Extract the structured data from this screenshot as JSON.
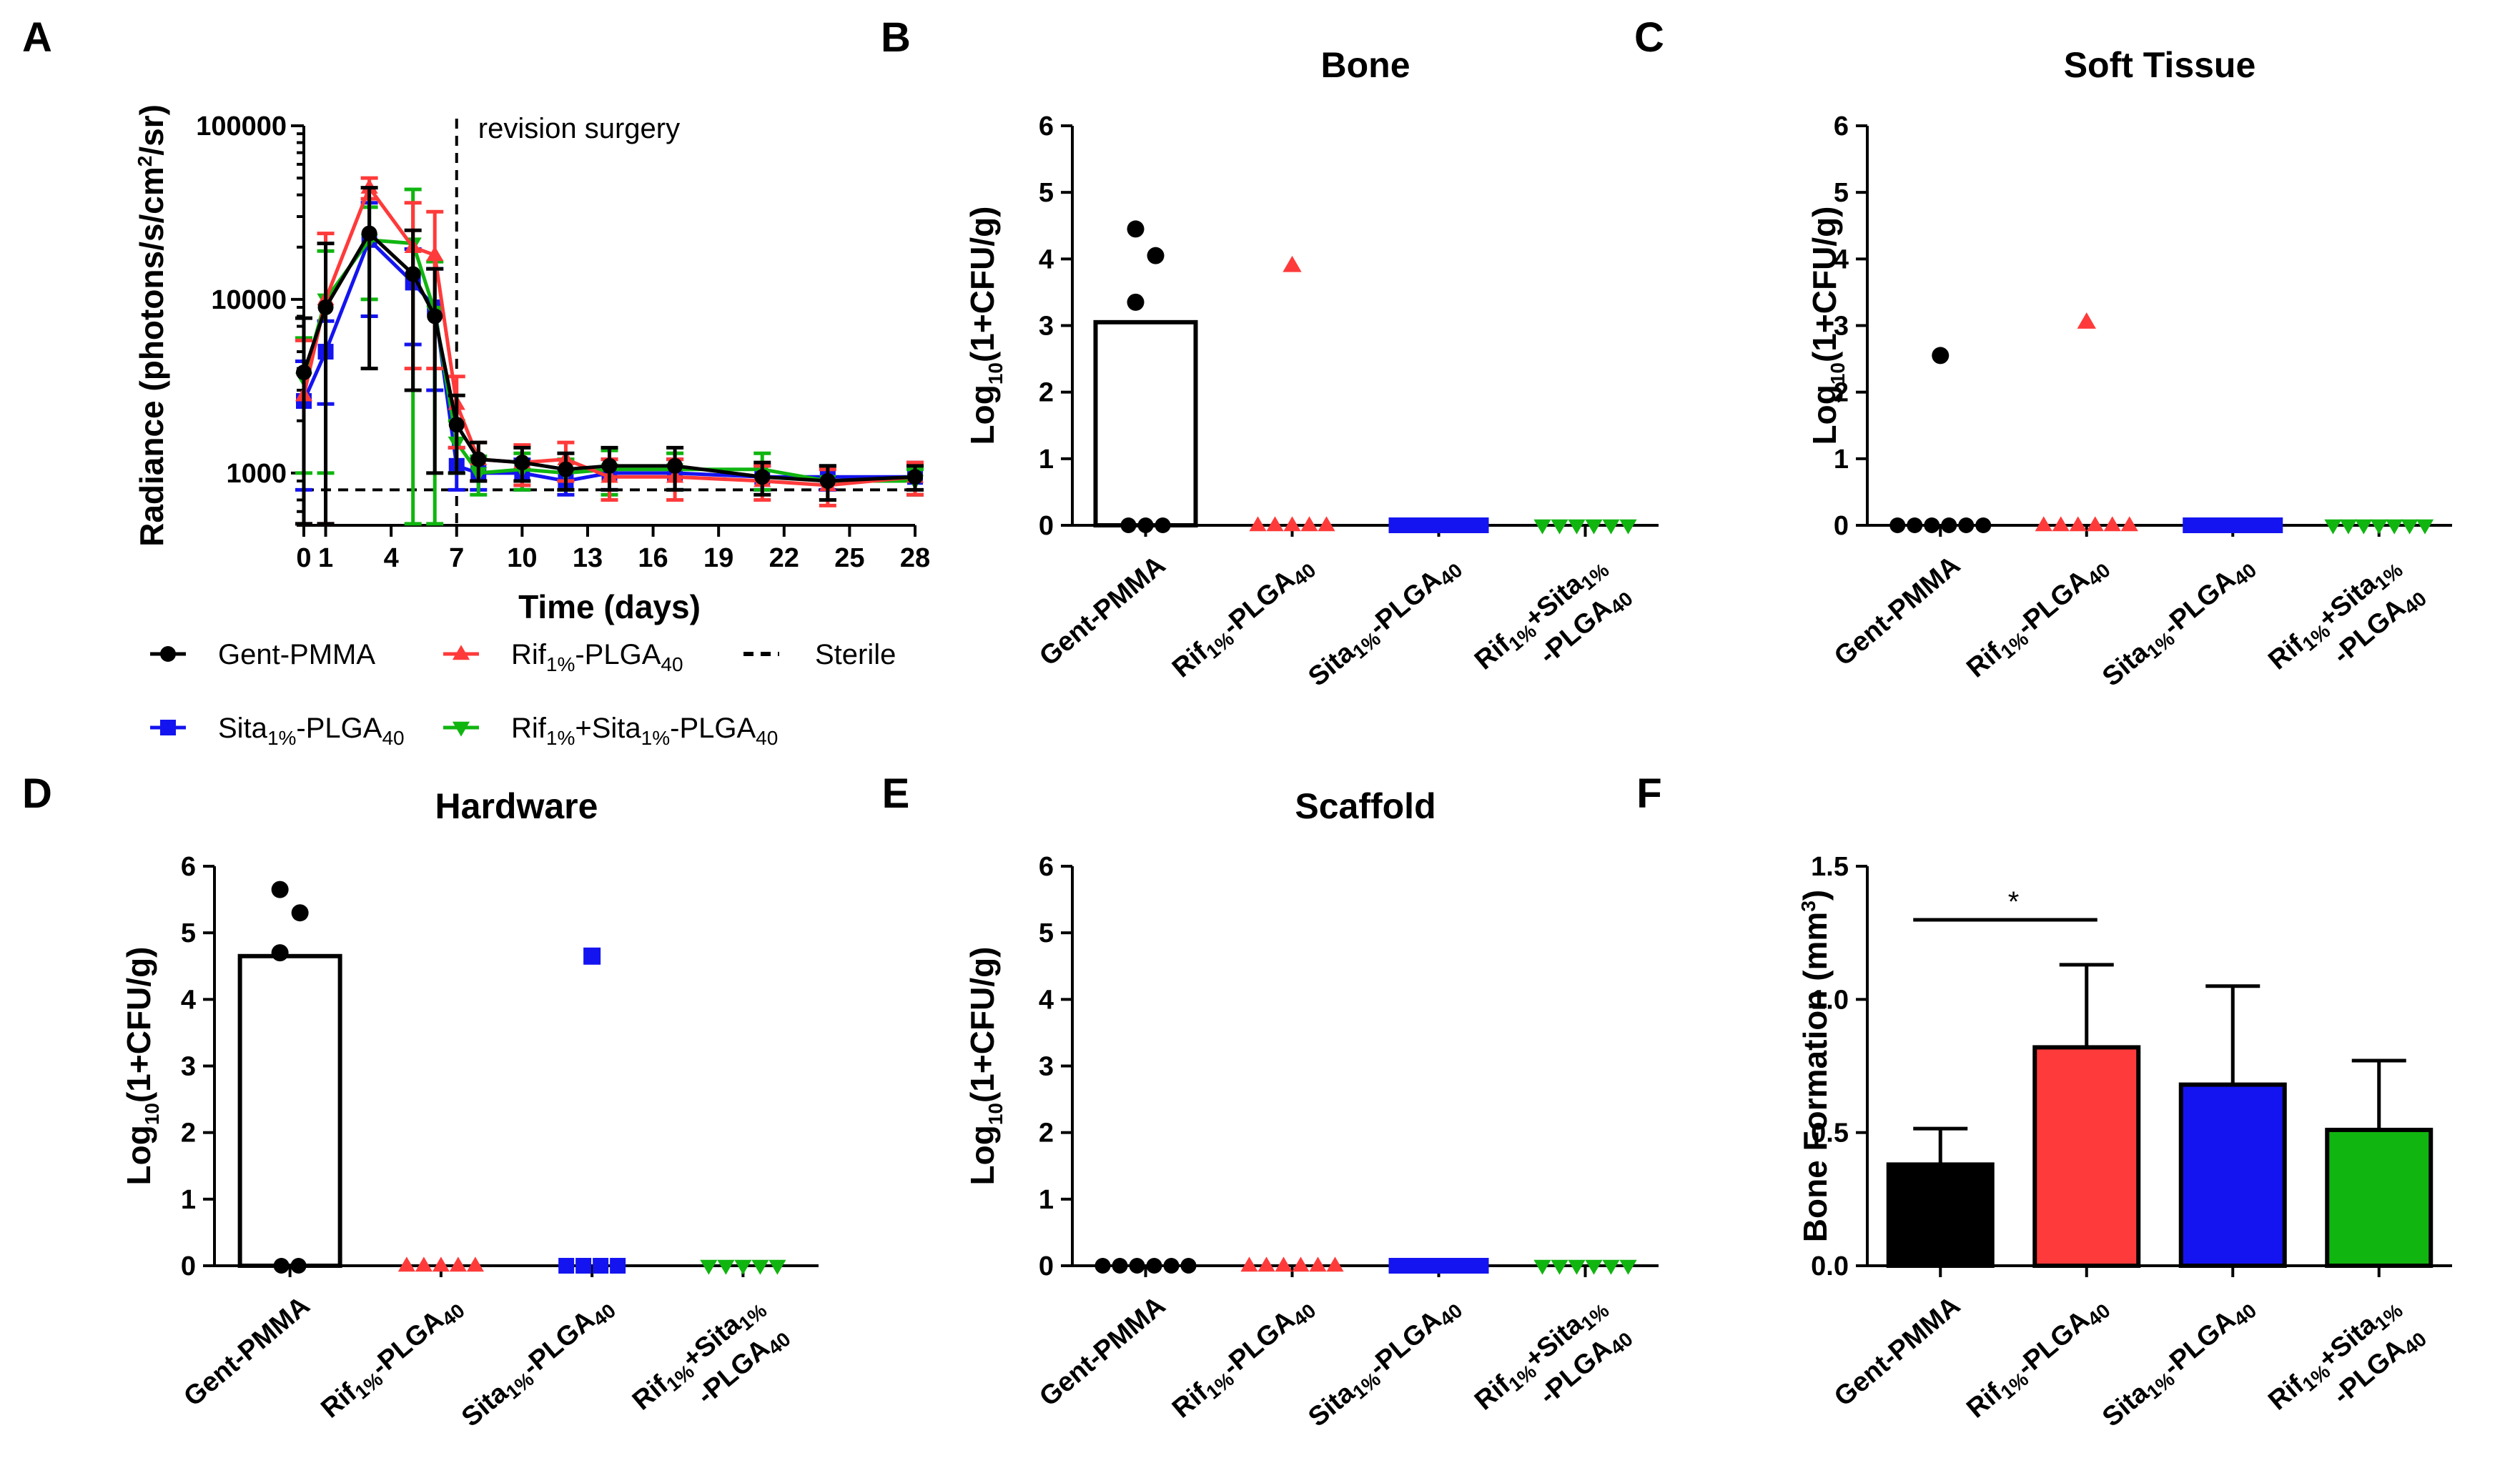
{
  "figure": {
    "layout": "2x3 multi-panel"
  },
  "colors": {
    "gent": "#000000",
    "rif": "#ff3a3a",
    "sita": "#1414f0",
    "combo": "#10b510",
    "axis": "#000000"
  },
  "icons": {
    "gent": "circle",
    "rif": "triangle-up",
    "sita": "square",
    "combo": "triangle-down",
    "sterile": "dashed-line"
  },
  "chart_data": [
    {
      "panel": "A",
      "type": "line",
      "title": "",
      "xlabel": "Time (days)",
      "ylabel": "Radiance (photons/s/cm²/sr)",
      "ylabel_parts": {
        "pre": "Radiance (photons/s/cm",
        "sup": "2",
        "post": "/sr)"
      },
      "yscale": "log",
      "ylim": [
        500,
        100000
      ],
      "xlim": [
        0,
        28
      ],
      "yticks": [
        1000,
        10000,
        100000
      ],
      "ytick_labels": [
        "1000",
        "10000",
        "100000"
      ],
      "xticks": [
        0,
        1,
        4,
        7,
        10,
        13,
        16,
        19,
        22,
        25,
        28
      ],
      "xtick_labels": [
        "0",
        "1",
        "4",
        "7",
        "10",
        "13",
        "16",
        "19",
        "22",
        "25",
        "28"
      ],
      "x": [
        0,
        1,
        3,
        5,
        6,
        7,
        8,
        10,
        12,
        14,
        17,
        21,
        24,
        28
      ],
      "series": [
        {
          "key": "gent",
          "name": "Gent-PMMA",
          "name_parts": {
            "a": "Gent-PMMA"
          },
          "values": [
            3800,
            9000,
            24000,
            14000,
            8000,
            1900,
            1200,
            1150,
            1050,
            1100,
            1100,
            950,
            900,
            950
          ],
          "err": [
            4000,
            12000,
            20000,
            11000,
            7000,
            900,
            300,
            250,
            250,
            300,
            300,
            200,
            200,
            150
          ]
        },
        {
          "key": "rif",
          "name": "Rif1%-PLGA40",
          "name_parts": {
            "a": "Rif",
            "s1": "1%",
            "b": "-PLGA",
            "s2": "40"
          },
          "values": [
            2800,
            10000,
            44000,
            20000,
            18000,
            2500,
            1200,
            1150,
            1200,
            950,
            950,
            900,
            850,
            950
          ],
          "err": [
            3000,
            14000,
            6000,
            16000,
            14000,
            1100,
            300,
            300,
            300,
            250,
            250,
            200,
            200,
            200
          ]
        },
        {
          "key": "sita",
          "name": "Sita1%-PLGA40",
          "name_parts": {
            "a": "Sita",
            "s1": "1%",
            "b": "-PLGA",
            "s2": "40"
          },
          "values": [
            2600,
            5000,
            22000,
            12500,
            9000,
            1100,
            1000,
            1000,
            900,
            1000,
            1000,
            950,
            950,
            950
          ],
          "err": [
            1800,
            2500,
            14000,
            7000,
            6000,
            300,
            200,
            200,
            150,
            200,
            200,
            150,
            150,
            200
          ]
        },
        {
          "key": "combo",
          "name": "Rif1%+Sita1%-PLGA40",
          "name_parts": {
            "a": "Rif",
            "s1": "1%",
            "b": "+Sita",
            "s2": "1%",
            "c": "-PLGA",
            "s3": "40"
          },
          "values": [
            3500,
            10000,
            22000,
            21000,
            8500,
            1500,
            1000,
            1050,
            1000,
            1050,
            1050,
            1050,
            900,
            900
          ],
          "err": [
            2500,
            9000,
            12000,
            22000,
            8000,
            500,
            250,
            250,
            200,
            300,
            250,
            250,
            200,
            150
          ]
        }
      ],
      "sterile": {
        "name": "Sterile",
        "value": 800
      },
      "annotations": [
        {
          "text": "revision surgery",
          "x": 7
        }
      ]
    },
    {
      "panel": "B",
      "type": "scatter",
      "title": "Bone",
      "ylabel": "Log10(1+CFU/g)",
      "ylabel_parts": {
        "pre": "Log",
        "sub": "10",
        "post": "(1+CFU/g)"
      },
      "ylim": [
        0,
        6
      ],
      "yticks": [
        0,
        1,
        2,
        3,
        4,
        5,
        6
      ],
      "categories": [
        "Gent-PMMA",
        "Rif1%-PLGA40",
        "Sita1%-PLGA40",
        "Rif1%+Sita1%-PLGA40"
      ],
      "bar_means": [
        3.05,
        0,
        0,
        0
      ],
      "points": [
        [
          4.45,
          4.05,
          3.35,
          0,
          0,
          0
        ],
        [
          3.9,
          0,
          0,
          0,
          0,
          0
        ],
        [
          0,
          0,
          0,
          0,
          0,
          0
        ],
        [
          0,
          0,
          0,
          0,
          0,
          0
        ]
      ]
    },
    {
      "panel": "C",
      "type": "scatter",
      "title": "Soft Tissue",
      "ylabel": "Log10(1+CFU/g)",
      "ylabel_parts": {
        "pre": "Log",
        "sub": "10",
        "post": "(1+CFU/g)"
      },
      "ylim": [
        0,
        6
      ],
      "yticks": [
        0,
        1,
        2,
        3,
        4,
        5,
        6
      ],
      "categories": [
        "Gent-PMMA",
        "Rif1%-PLGA40",
        "Sita1%-PLGA40",
        "Rif1%+Sita1%-PLGA40"
      ],
      "bar_means": [
        0,
        0,
        0,
        0
      ],
      "points": [
        [
          2.55,
          0,
          0,
          0,
          0,
          0,
          0
        ],
        [
          3.05,
          0,
          0,
          0,
          0,
          0,
          0
        ],
        [
          0,
          0,
          0,
          0,
          0,
          0,
          0
        ],
        [
          0,
          0,
          0,
          0,
          0,
          0,
          0
        ]
      ]
    },
    {
      "panel": "D",
      "type": "scatter",
      "title": "Hardware",
      "ylabel": "Log10(1+CFU/g)",
      "ylabel_parts": {
        "pre": "Log",
        "sub": "10",
        "post": "(1+CFU/g)"
      },
      "ylim": [
        0,
        6
      ],
      "yticks": [
        0,
        1,
        2,
        3,
        4,
        5,
        6
      ],
      "categories": [
        "Gent-PMMA",
        "Rif1%-PLGA40",
        "Sita1%-PLGA40",
        "Rif1%+Sita1%-PLGA40"
      ],
      "bar_means": [
        4.65,
        0,
        0,
        0
      ],
      "points": [
        [
          5.65,
          5.3,
          4.7,
          0,
          0
        ],
        [
          0,
          0,
          0,
          0,
          0
        ],
        [
          4.65,
          0,
          0,
          0,
          0
        ],
        [
          0,
          0,
          0,
          0,
          0
        ]
      ]
    },
    {
      "panel": "E",
      "type": "scatter",
      "title": "Scaffold",
      "ylabel": "Log10(1+CFU/g)",
      "ylabel_parts": {
        "pre": "Log",
        "sub": "10",
        "post": "(1+CFU/g)"
      },
      "ylim": [
        0,
        6
      ],
      "yticks": [
        0,
        1,
        2,
        3,
        4,
        5,
        6
      ],
      "categories": [
        "Gent-PMMA",
        "Rif1%-PLGA40",
        "Sita1%-PLGA40",
        "Rif1%+Sita1%-PLGA40"
      ],
      "bar_means": [
        0,
        0,
        0,
        0
      ],
      "points": [
        [
          0,
          0,
          0,
          0,
          0,
          0
        ],
        [
          0,
          0,
          0,
          0,
          0,
          0
        ],
        [
          0,
          0,
          0,
          0,
          0,
          0,
          0
        ],
        [
          0,
          0,
          0,
          0,
          0,
          0
        ]
      ]
    },
    {
      "panel": "F",
      "type": "bar",
      "title": "",
      "ylabel": "Bone Formation (mm3)",
      "ylabel_parts": {
        "pre": "Bone Formation (mm",
        "sup": "3",
        "post": ")"
      },
      "ylim": [
        0,
        1.5
      ],
      "yticks": [
        0,
        0.5,
        1.0,
        1.5
      ],
      "ytick_labels": [
        "0.0",
        "0.5",
        "1.0",
        "1.5"
      ],
      "categories": [
        "Gent-PMMA",
        "Rif1%-PLGA40",
        "Sita1%-PLGA40",
        "Rif1%+Sita1%-PLGA40"
      ],
      "values": [
        0.38,
        0.82,
        0.68,
        0.51
      ],
      "err": [
        0.135,
        0.31,
        0.37,
        0.26
      ],
      "significance": [
        {
          "from": 0,
          "to": 1,
          "label": "*"
        }
      ]
    }
  ]
}
